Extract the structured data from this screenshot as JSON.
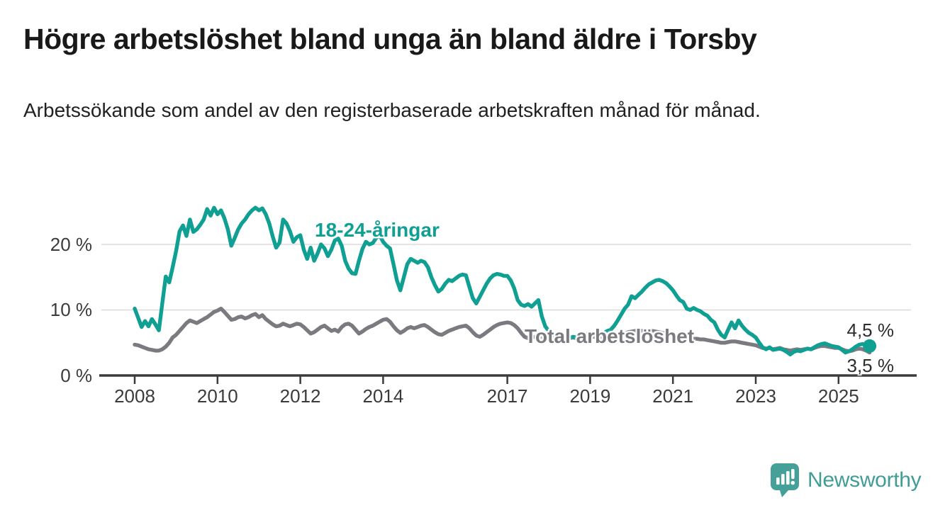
{
  "header": {
    "title": "Högre arbetslöshet bland unga än bland äldre i Torsby",
    "subtitle": "Arbetssökande som andel av den registerbaserade arbetskraften månad för månad."
  },
  "branding": {
    "logo_text": "Newsworthy",
    "logo_icon": "newsworthy-speech-bubble-bar-chart-icon",
    "logo_color": "#46a09a"
  },
  "chart_data": {
    "type": "line",
    "title": "Högre arbetslöshet bland unga än bland äldre i Torsby",
    "subtitle": "Arbetssökande som andel av den registerbaserade arbetskraften månad för månad.",
    "unit": "%",
    "grid": "horizontal-only",
    "x_start_year": 2008.0,
    "x_step_months": 1,
    "x_end_year": 2025.75,
    "x_tick_years": [
      2008,
      2010,
      2012,
      2014,
      2017,
      2019,
      2021,
      2023,
      2025
    ],
    "y_ticks": [
      {
        "value": 0,
        "label": "0 %"
      },
      {
        "value": 10,
        "label": "10 %"
      },
      {
        "value": 20,
        "label": "20 %"
      }
    ],
    "ylim": [
      0,
      27
    ],
    "colors": {
      "grid": "#dbdbdb",
      "axis": "#3b3b3b"
    },
    "series": [
      {
        "name": "18-24-åringar",
        "color": "#0fa093",
        "end_label": "4,5 %",
        "end_value": 4.5,
        "end_dot": true,
        "values": [
          10.2,
          8.8,
          7.4,
          8.3,
          7.5,
          8.6,
          7.8,
          6.9,
          11.0,
          15.1,
          14.2,
          16.5,
          19.0,
          22.0,
          22.9,
          21.3,
          23.8,
          21.9,
          22.3,
          23.0,
          23.8,
          25.4,
          24.4,
          25.6,
          24.6,
          25.2,
          24.0,
          22.3,
          19.8,
          21.0,
          22.3,
          23.2,
          23.8,
          24.6,
          25.2,
          25.6,
          25.2,
          25.5,
          24.6,
          23.2,
          21.2,
          19.5,
          20.3,
          23.8,
          23.2,
          22.0,
          20.4,
          21.1,
          21.4,
          19.2,
          17.8,
          19.5,
          17.5,
          18.6,
          20.0,
          19.4,
          18.2,
          19.2,
          20.6,
          20.9,
          19.8,
          17.5,
          16.3,
          15.6,
          15.5,
          17.5,
          19.3,
          20.4,
          20.0,
          20.2,
          21.0,
          21.4,
          20.4,
          19.8,
          19.4,
          17.0,
          14.5,
          13.0,
          15.0,
          17.0,
          17.8,
          17.5,
          17.2,
          17.5,
          17.3,
          16.5,
          15.0,
          13.8,
          12.8,
          13.2,
          14.0,
          14.6,
          14.4,
          14.8,
          15.2,
          15.4,
          15.3,
          13.5,
          11.8,
          11.0,
          12.0,
          13.0,
          14.0,
          14.8,
          15.3,
          15.5,
          15.4,
          15.2,
          15.2,
          14.5,
          13.3,
          11.5,
          10.8,
          10.6,
          10.9,
          10.5,
          11.0,
          11.5,
          9.0,
          7.5,
          6.8,
          6.4,
          6.1,
          5.9,
          5.7,
          5.6,
          5.7,
          5.9,
          5.8,
          6.0,
          6.2,
          6.3,
          6.4,
          6.3,
          6.2,
          6.3,
          6.5,
          6.8,
          7.0,
          7.6,
          8.4,
          9.3,
          10.2,
          10.8,
          12.1,
          11.8,
          12.3,
          12.8,
          13.4,
          13.9,
          14.2,
          14.5,
          14.6,
          14.4,
          14.1,
          13.6,
          13.0,
          12.2,
          11.5,
          11.2,
          10.2,
          10.0,
          10.3,
          10.0,
          9.8,
          9.4,
          9.1,
          8.5,
          8.1,
          7.0,
          6.2,
          5.8,
          7.0,
          8.1,
          7.2,
          8.4,
          7.6,
          7.0,
          6.5,
          6.2,
          5.8,
          5.0,
          4.3,
          4.0,
          4.3,
          3.9,
          4.0,
          4.1,
          3.9,
          3.6,
          3.2,
          3.6,
          3.8,
          3.7,
          3.9,
          4.1,
          4.0,
          4.3,
          4.6,
          4.8,
          4.9,
          4.7,
          4.5,
          4.4,
          4.3,
          3.9,
          3.5,
          3.7,
          4.0,
          4.4,
          4.7,
          4.8,
          4.6,
          4.5
        ]
      },
      {
        "name": "Total arbetslöshet",
        "color": "#7b7a80",
        "end_label": "3,5 %",
        "end_value": 3.5,
        "end_dot": false,
        "values": [
          4.7,
          4.6,
          4.4,
          4.2,
          4.0,
          3.9,
          3.8,
          3.8,
          4.0,
          4.4,
          5.0,
          5.8,
          6.2,
          6.8,
          7.4,
          8.0,
          8.4,
          8.2,
          8.0,
          8.3,
          8.6,
          8.9,
          9.3,
          9.7,
          9.9,
          10.2,
          9.7,
          9.1,
          8.5,
          8.6,
          8.9,
          9.0,
          8.7,
          8.9,
          9.2,
          9.4,
          8.9,
          9.2,
          8.6,
          8.2,
          7.8,
          7.5,
          7.6,
          7.9,
          7.7,
          7.5,
          7.7,
          7.9,
          7.8,
          7.4,
          6.9,
          6.4,
          6.6,
          7.0,
          7.4,
          7.6,
          7.2,
          6.8,
          7.0,
          6.7,
          7.4,
          7.8,
          7.9,
          7.6,
          7.0,
          6.4,
          6.7,
          7.1,
          7.4,
          7.6,
          7.9,
          8.2,
          8.5,
          8.6,
          8.2,
          7.5,
          6.9,
          6.5,
          6.8,
          7.2,
          7.4,
          7.2,
          7.4,
          7.6,
          7.7,
          7.4,
          7.0,
          6.6,
          6.3,
          6.2,
          6.5,
          6.8,
          7.0,
          7.2,
          7.4,
          7.5,
          7.6,
          7.2,
          6.6,
          6.1,
          5.9,
          6.2,
          6.6,
          7.0,
          7.4,
          7.7,
          7.9,
          8.0,
          8.1,
          8.0,
          7.7,
          7.2,
          6.5,
          5.9,
          5.7,
          5.8,
          5.9,
          5.8,
          5.9,
          6.0,
          6.1,
          6.0,
          5.8,
          5.6,
          5.5,
          5.6,
          5.7,
          5.8,
          5.7,
          5.8,
          5.9,
          6.0,
          6.0,
          5.9,
          5.8,
          5.7,
          5.6,
          5.7,
          5.9,
          6.0,
          6.1,
          6.2,
          6.4,
          6.6,
          6.7,
          6.8,
          6.8,
          6.8,
          6.8,
          6.8,
          6.8,
          6.7,
          6.6,
          6.5,
          6.4,
          6.3,
          6.2,
          6.1,
          6.0,
          5.9,
          5.8,
          5.7,
          5.6,
          5.6,
          5.5,
          5.5,
          5.4,
          5.3,
          5.2,
          5.1,
          5.0,
          5.0,
          5.1,
          5.2,
          5.2,
          5.1,
          5.0,
          4.9,
          4.8,
          4.7,
          4.6,
          4.4,
          4.2,
          4.1,
          4.2,
          4.0,
          4.1,
          4.2,
          4.0,
          3.9,
          3.8,
          3.9,
          4.0,
          3.9,
          4.0,
          4.1,
          4.0,
          4.2,
          4.4,
          4.5,
          4.5,
          4.4,
          4.3,
          4.2,
          4.2,
          4.0,
          3.8,
          3.7,
          3.8,
          4.0,
          4.1,
          4.0,
          3.8,
          3.5
        ]
      }
    ]
  }
}
